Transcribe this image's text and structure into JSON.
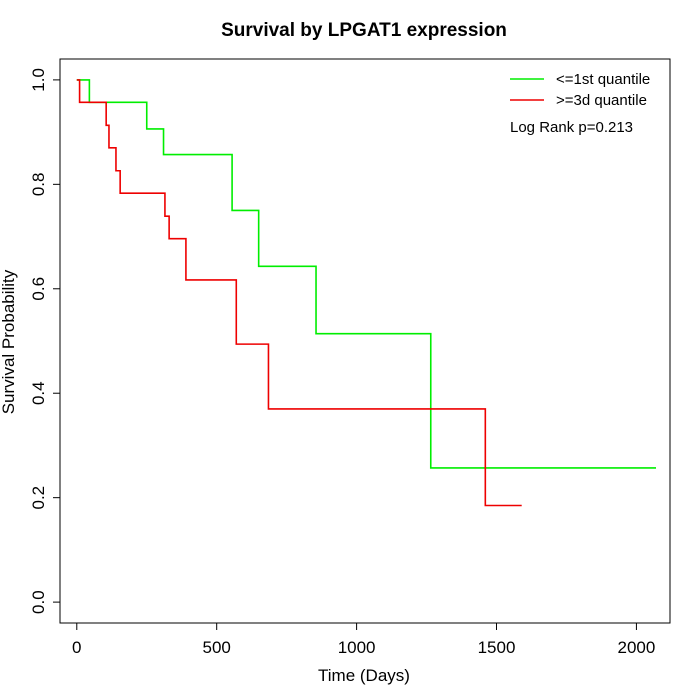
{
  "chart_data": {
    "type": "line",
    "step": true,
    "title": "Survival by LPGAT1 expression",
    "xlabel": "Time (Days)",
    "ylabel": "Survival Probability",
    "xlim": [
      -60,
      2120
    ],
    "ylim": [
      -0.04,
      1.04
    ],
    "xticks": [
      0,
      500,
      1000,
      1500,
      2000
    ],
    "yticks": [
      0.0,
      0.2,
      0.4,
      0.6,
      0.8,
      1.0
    ],
    "xtick_labels": [
      "0",
      "500",
      "1000",
      "1500",
      "2000"
    ],
    "ytick_labels": [
      "0.0",
      "0.2",
      "0.4",
      "0.6",
      "0.8",
      "1.0"
    ],
    "legend_position": "top-right",
    "annotation": "Log Rank p=0.213",
    "series": [
      {
        "name": "<=1st quantile",
        "color": "#00ee00",
        "x": [
          0,
          45,
          250,
          310,
          555,
          650,
          855,
          1265,
          2070
        ],
        "y": [
          1.0,
          0.957,
          0.906,
          0.857,
          0.75,
          0.643,
          0.514,
          0.257,
          0.257
        ]
      },
      {
        "name": ">=3d quantile",
        "color": "#ee0000",
        "x": [
          0,
          10,
          105,
          115,
          140,
          155,
          315,
          330,
          390,
          570,
          685,
          1460,
          1590
        ],
        "y": [
          1.0,
          0.957,
          0.913,
          0.87,
          0.826,
          0.783,
          0.739,
          0.696,
          0.617,
          0.494,
          0.37,
          0.185,
          0.185
        ]
      }
    ]
  }
}
